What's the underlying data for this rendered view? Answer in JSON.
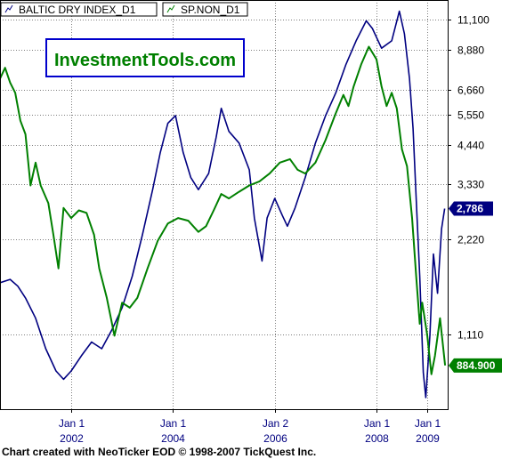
{
  "watermark": "InvestmentTools.com",
  "footer": "Chart created with NeoTicker EOD © 1998-2007 TickQuest Inc.",
  "colors": {
    "background": "#ffffff",
    "grid": "#7f7f7f",
    "baltic": "#000080",
    "sp": "#008000",
    "watermark_text": "#008000",
    "watermark_border": "#0000cc"
  },
  "chart_data": {
    "type": "line",
    "grid": true,
    "legend_position": "top-left",
    "x_ticks": [
      {
        "label": "Jan 1",
        "year": "2002",
        "x": 2002.0
      },
      {
        "label": "Jan 1",
        "year": "2004",
        "x": 2004.0
      },
      {
        "label": "Jan 2",
        "year": "2006",
        "x": 2006.0
      },
      {
        "label": "Jan 1",
        "year": "2008",
        "x": 2008.0
      },
      {
        "label": "Jan 1",
        "year": "2009",
        "x": 2009.0
      }
    ],
    "x_range": [
      2000.6,
      2009.4
    ],
    "y_ticks": [
      {
        "label": "11,100",
        "value": 11100
      },
      {
        "label": "8,880",
        "value": 8880
      },
      {
        "label": "6,660",
        "value": 6660
      },
      {
        "label": "5,550",
        "value": 5550
      },
      {
        "label": "4,440",
        "value": 4440
      },
      {
        "label": "3,330",
        "value": 3330
      },
      {
        "label": "2,220",
        "value": 2220
      },
      {
        "label": "1,110",
        "value": 1110
      }
    ],
    "series": [
      {
        "name": "BALTIC DRY INDEX_D1",
        "axis_tag": "2,786",
        "tag_value": 2786,
        "color": "#000080",
        "points": [
          [
            2000.6,
            1620
          ],
          [
            2000.8,
            1660
          ],
          [
            2000.95,
            1580
          ],
          [
            2001.1,
            1450
          ],
          [
            2001.3,
            1250
          ],
          [
            2001.5,
            1000
          ],
          [
            2001.7,
            850
          ],
          [
            2001.85,
            800
          ],
          [
            2002.0,
            850
          ],
          [
            2002.2,
            950
          ],
          [
            2002.4,
            1050
          ],
          [
            2002.6,
            1000
          ],
          [
            2002.8,
            1150
          ],
          [
            2003.0,
            1350
          ],
          [
            2003.2,
            1700
          ],
          [
            2003.4,
            2300
          ],
          [
            2003.6,
            3200
          ],
          [
            2003.75,
            4200
          ],
          [
            2003.9,
            5200
          ],
          [
            2004.05,
            5500
          ],
          [
            2004.2,
            4200
          ],
          [
            2004.35,
            3500
          ],
          [
            2004.5,
            3200
          ],
          [
            2004.7,
            3600
          ],
          [
            2004.85,
            4700
          ],
          [
            2004.95,
            5800
          ],
          [
            2005.1,
            4900
          ],
          [
            2005.3,
            4500
          ],
          [
            2005.5,
            3700
          ],
          [
            2005.6,
            2600
          ],
          [
            2005.75,
            1900
          ],
          [
            2005.85,
            2600
          ],
          [
            2006.0,
            3000
          ],
          [
            2006.15,
            2650
          ],
          [
            2006.25,
            2450
          ],
          [
            2006.4,
            2800
          ],
          [
            2006.6,
            3500
          ],
          [
            2006.8,
            4500
          ],
          [
            2007.0,
            5500
          ],
          [
            2007.2,
            6500
          ],
          [
            2007.4,
            8000
          ],
          [
            2007.6,
            9500
          ],
          [
            2007.8,
            11000
          ],
          [
            2007.92,
            10400
          ],
          [
            2008.1,
            9000
          ],
          [
            2008.3,
            9500
          ],
          [
            2008.45,
            11800
          ],
          [
            2008.55,
            10000
          ],
          [
            2008.65,
            7200
          ],
          [
            2008.72,
            5000
          ],
          [
            2008.78,
            3000
          ],
          [
            2008.85,
            1700
          ],
          [
            2008.92,
            840
          ],
          [
            2008.97,
            700
          ],
          [
            2009.05,
            1100
          ],
          [
            2009.12,
            2000
          ],
          [
            2009.2,
            1500
          ],
          [
            2009.28,
            2400
          ],
          [
            2009.34,
            2786
          ]
        ]
      },
      {
        "name": "SP.NON_D1",
        "axis_tag": "884.900",
        "tag_value": 884.9,
        "color": "#008000",
        "points": [
          [
            2000.6,
            7200
          ],
          [
            2000.7,
            7800
          ],
          [
            2000.8,
            7000
          ],
          [
            2000.9,
            6500
          ],
          [
            2001.0,
            5300
          ],
          [
            2001.1,
            4800
          ],
          [
            2001.2,
            3300
          ],
          [
            2001.3,
            3900
          ],
          [
            2001.4,
            3300
          ],
          [
            2001.55,
            2900
          ],
          [
            2001.65,
            2300
          ],
          [
            2001.75,
            1800
          ],
          [
            2001.85,
            2800
          ],
          [
            2002.0,
            2600
          ],
          [
            2002.15,
            2750
          ],
          [
            2002.3,
            2700
          ],
          [
            2002.45,
            2300
          ],
          [
            2002.55,
            1800
          ],
          [
            2002.7,
            1450
          ],
          [
            2002.85,
            1100
          ],
          [
            2003.0,
            1400
          ],
          [
            2003.15,
            1350
          ],
          [
            2003.3,
            1450
          ],
          [
            2003.5,
            1800
          ],
          [
            2003.7,
            2200
          ],
          [
            2003.9,
            2500
          ],
          [
            2004.1,
            2600
          ],
          [
            2004.3,
            2550
          ],
          [
            2004.5,
            2350
          ],
          [
            2004.65,
            2450
          ],
          [
            2004.8,
            2750
          ],
          [
            2004.95,
            3100
          ],
          [
            2005.1,
            3000
          ],
          [
            2005.3,
            3150
          ],
          [
            2005.5,
            3300
          ],
          [
            2005.7,
            3400
          ],
          [
            2005.9,
            3600
          ],
          [
            2006.1,
            3900
          ],
          [
            2006.3,
            4000
          ],
          [
            2006.45,
            3700
          ],
          [
            2006.6,
            3600
          ],
          [
            2006.8,
            3900
          ],
          [
            2007.0,
            4600
          ],
          [
            2007.2,
            5600
          ],
          [
            2007.35,
            6400
          ],
          [
            2007.45,
            5900
          ],
          [
            2007.55,
            6800
          ],
          [
            2007.7,
            8000
          ],
          [
            2007.85,
            9100
          ],
          [
            2008.0,
            8300
          ],
          [
            2008.1,
            6800
          ],
          [
            2008.2,
            5900
          ],
          [
            2008.3,
            6500
          ],
          [
            2008.4,
            5800
          ],
          [
            2008.5,
            4300
          ],
          [
            2008.6,
            3800
          ],
          [
            2008.7,
            2600
          ],
          [
            2008.78,
            1700
          ],
          [
            2008.85,
            1200
          ],
          [
            2008.9,
            1400
          ],
          [
            2009.0,
            1100
          ],
          [
            2009.08,
            830
          ],
          [
            2009.15,
            950
          ],
          [
            2009.25,
            1250
          ],
          [
            2009.35,
            885
          ]
        ]
      }
    ]
  }
}
